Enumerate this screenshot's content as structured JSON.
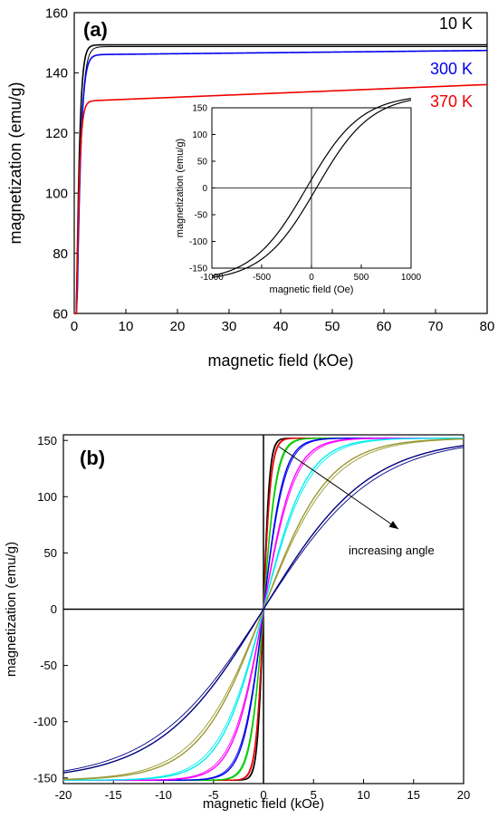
{
  "chart_data": [
    {
      "type": "line",
      "panel_label": "(a)",
      "xlabel": "magnetic field (kOe)",
      "ylabel": "magnetization (emu/g)",
      "xlim": [
        0,
        80
      ],
      "ylim": [
        60,
        160
      ],
      "x_ticks": [
        0,
        10,
        20,
        30,
        40,
        50,
        60,
        70,
        80
      ],
      "y_ticks": [
        60,
        80,
        100,
        120,
        140,
        160
      ],
      "series": [
        {
          "name": "10 K",
          "color": "#000000",
          "saturation": 149.3,
          "knee": 1.0,
          "slope": 0.0
        },
        {
          "name": "300 K",
          "color": "#0000ee",
          "saturation": 146.0,
          "knee": 1.2,
          "slope": 0.018
        },
        {
          "name": "370 K",
          "color": "#ee0000",
          "saturation": 130.5,
          "knee": 0.9,
          "slope": 0.07
        }
      ],
      "inset": {
        "type": "line",
        "xlabel": "magnetic field (Oe)",
        "ylabel": "magnetization (emu/g)",
        "xlim": [
          -1000,
          1000
        ],
        "ylim": [
          -150,
          150
        ],
        "x_ticks": [
          -1000,
          -500,
          0,
          500,
          1000
        ],
        "y_ticks": [
          -150,
          -100,
          -50,
          0,
          50,
          100,
          150
        ],
        "series": [
          {
            "color": "#000000",
            "coercivity": 50,
            "ms": 175,
            "field_scale": 550
          }
        ]
      }
    },
    {
      "type": "line",
      "panel_label": "(b)",
      "xlabel": "magnetic field (kOe)",
      "ylabel": "magnetization (emu/g)",
      "xlim": [
        -20,
        20
      ],
      "ylim": [
        -155,
        155
      ],
      "x_ticks": [
        -20,
        -15,
        -10,
        -5,
        0,
        5,
        10,
        15,
        20
      ],
      "y_ticks": [
        -150,
        -100,
        -50,
        0,
        50,
        100,
        150
      ],
      "annotation": "increasing angle",
      "series": [
        {
          "color": "#000000",
          "ms": 152,
          "field_scale": 0.6
        },
        {
          "color": "#ee0000",
          "ms": 152,
          "field_scale": 0.75
        },
        {
          "color": "#00cc00",
          "ms": 152,
          "field_scale": 1.3
        },
        {
          "color": "#0000ee",
          "ms": 152,
          "field_scale": 2.0
        },
        {
          "color": "#ff00ff",
          "ms": 152,
          "field_scale": 3.0
        },
        {
          "color": "#00eeee",
          "ms": 152,
          "field_scale": 4.3
        },
        {
          "color": "#999933",
          "ms": 152,
          "field_scale": 6.5
        },
        {
          "color": "#000080",
          "ms": 152,
          "field_scale": 10.5
        }
      ]
    }
  ]
}
